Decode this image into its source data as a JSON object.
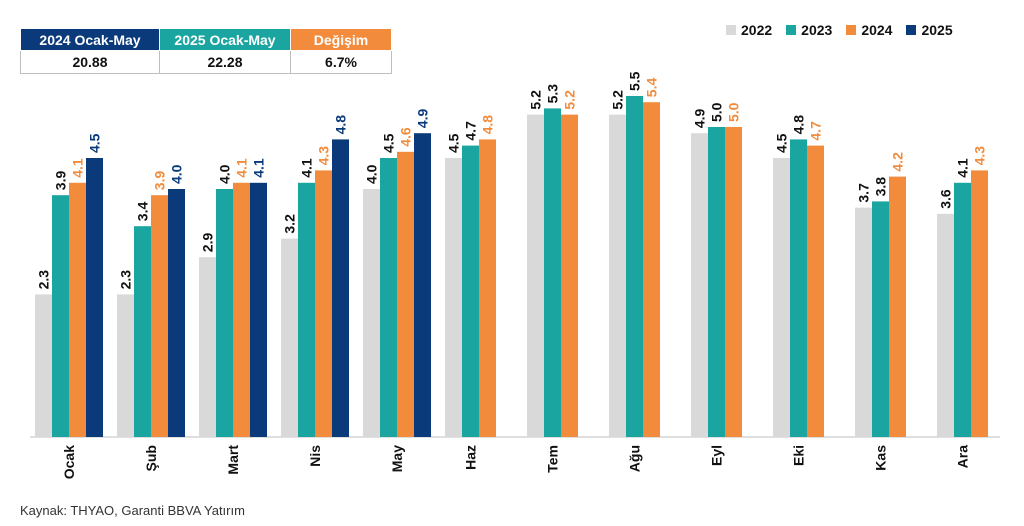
{
  "summary_table": {
    "headers": [
      "2024 Ocak-May",
      "2025 Ocak-May",
      "Değişim"
    ],
    "values": [
      "20.88",
      "22.28",
      "6.7%"
    ]
  },
  "source": "Kaynak: THYAO, Garanti BBVA Yatırım",
  "chart_data": {
    "type": "bar",
    "categories": [
      "Ocak",
      "Şub",
      "Mart",
      "Nis",
      "May",
      "Haz",
      "Tem",
      "Ağu",
      "Eyl",
      "Eki",
      "Kas",
      "Ara"
    ],
    "series": [
      {
        "name": "2022",
        "color": "#d9d9d9",
        "label_color": "#111111",
        "values": [
          2.3,
          2.3,
          2.9,
          3.2,
          4.0,
          4.5,
          5.2,
          5.2,
          4.9,
          4.5,
          3.7,
          3.6
        ]
      },
      {
        "name": "2023",
        "color": "#1aa5a0",
        "label_color": "#111111",
        "values": [
          3.9,
          3.4,
          4.0,
          4.1,
          4.5,
          4.7,
          5.3,
          5.5,
          5.0,
          4.8,
          3.8,
          4.1
        ]
      },
      {
        "name": "2024",
        "color": "#f28c3c",
        "label_color": "#f28c3c",
        "values": [
          4.1,
          3.9,
          4.1,
          4.3,
          4.6,
          4.8,
          5.2,
          5.4,
          5.0,
          4.7,
          4.2,
          4.3
        ]
      },
      {
        "name": "2025",
        "color": "#0a3a7a",
        "label_color": "#0a3a7a",
        "values": [
          4.5,
          4.0,
          4.1,
          4.8,
          4.9,
          null,
          null,
          null,
          null,
          null,
          null,
          null
        ]
      }
    ],
    "ylim": [
      0,
      6
    ],
    "grid": false,
    "legend": "top-right",
    "title": "",
    "xlabel": "",
    "ylabel": ""
  }
}
